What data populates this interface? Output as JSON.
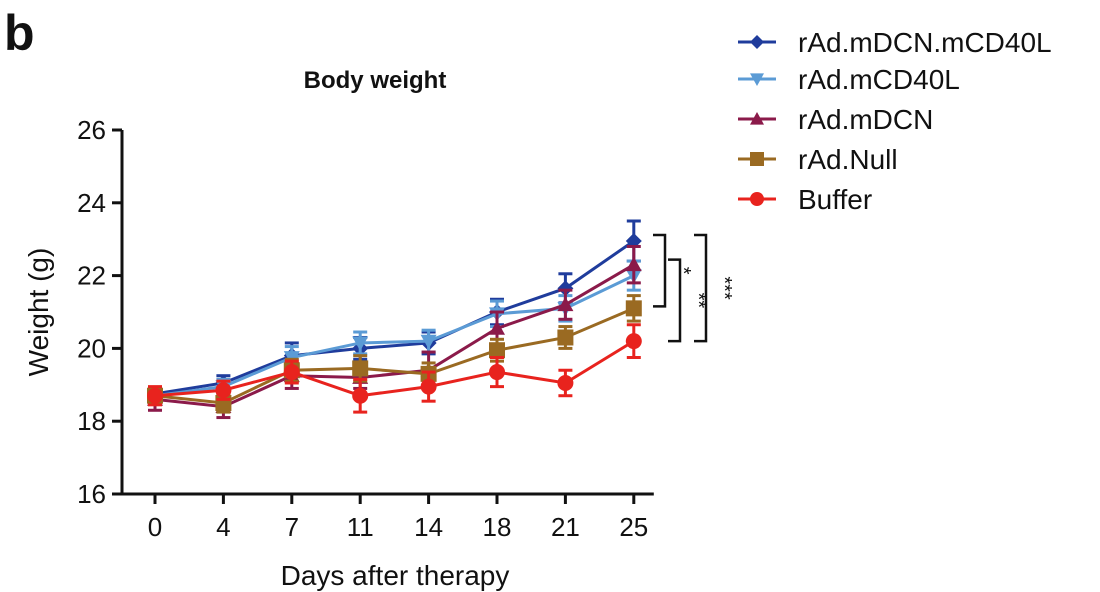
{
  "panel_label": "b",
  "chart_data": {
    "type": "line",
    "title": "Body weight",
    "xlabel": "Days after therapy",
    "ylabel": "Weight (g)",
    "categories": [
      "0",
      "4",
      "7",
      "11",
      "14",
      "18",
      "21",
      "25"
    ],
    "ylim": [
      16,
      26
    ],
    "yticks": [
      "16",
      "18",
      "20",
      "22",
      "24",
      "26"
    ],
    "grid": false,
    "legend_position": "top-right",
    "series": [
      {
        "name": "rAd.mDCN.mCD40L",
        "color": "#1f3c9c",
        "marker": "diamond",
        "values": [
          18.75,
          19.05,
          19.8,
          20.0,
          20.15,
          21.0,
          21.65,
          22.95
        ],
        "err": [
          0.15,
          0.2,
          0.35,
          0.3,
          0.3,
          0.35,
          0.4,
          0.55
        ]
      },
      {
        "name": "rAd.mCD40L",
        "color": "#5b9bd5",
        "marker": "triangle-down",
        "values": [
          18.7,
          18.95,
          19.75,
          20.15,
          20.2,
          20.95,
          21.1,
          22.0
        ],
        "err": [
          0.15,
          0.2,
          0.3,
          0.3,
          0.3,
          0.35,
          0.35,
          0.4
        ]
      },
      {
        "name": "rAd.mDCN",
        "color": "#8b1a4a",
        "marker": "triangle-up",
        "values": [
          18.6,
          18.4,
          19.25,
          19.2,
          19.4,
          20.55,
          21.2,
          22.3
        ],
        "err": [
          0.3,
          0.3,
          0.35,
          0.3,
          0.5,
          0.45,
          0.4,
          0.5
        ]
      },
      {
        "name": "rAd.Null",
        "color": "#9a6a22",
        "marker": "square",
        "values": [
          18.7,
          18.5,
          19.4,
          19.45,
          19.3,
          19.95,
          20.3,
          21.1
        ],
        "err": [
          0.2,
          0.25,
          0.3,
          0.35,
          0.3,
          0.3,
          0.3,
          0.35
        ]
      },
      {
        "name": "Buffer",
        "color": "#e8231e",
        "marker": "circle",
        "values": [
          18.7,
          18.85,
          19.35,
          18.7,
          18.95,
          19.35,
          19.05,
          20.2
        ],
        "err": [
          0.25,
          0.25,
          0.3,
          0.45,
          0.4,
          0.4,
          0.35,
          0.45
        ]
      }
    ],
    "annotations": [
      "*",
      "**",
      "***"
    ]
  }
}
